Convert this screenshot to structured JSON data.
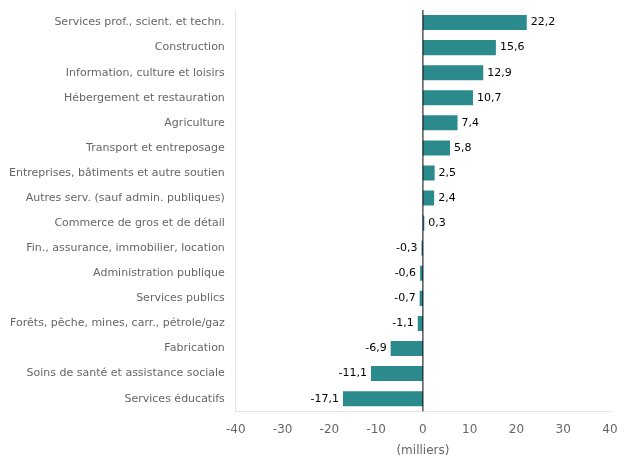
{
  "chart_data": {
    "type": "bar",
    "orientation": "horizontal",
    "categories": [
      "Services éducatifs",
      "Soins de santé et assistance sociale",
      "Fabrication",
      "Forêts, pêche, mines, carr., pétrole/gaz",
      "Services publics",
      "Administration publique",
      "Fin., assurance, immobilier, location",
      "Commerce de gros et de détail",
      "Autres serv. (sauf admin. publiques)",
      "Entreprises, bâtiments et autre soutien",
      "Transport et entreposage",
      "Agriculture",
      "Hébergement et restauration",
      "Information, culture et loisirs",
      "Construction",
      "Services prof., scient. et techn."
    ],
    "values": [
      -17.1,
      -11.1,
      -6.9,
      -1.1,
      -0.7,
      -0.6,
      -0.3,
      0.3,
      2.4,
      2.5,
      5.8,
      7.4,
      10.7,
      12.9,
      15.6,
      22.2
    ],
    "value_labels": [
      "-17,1",
      "-11,1",
      "-6,9",
      "-1,1",
      "-0,7",
      "-0,6",
      "-0,3",
      "0,3",
      "2,4",
      "2,5",
      "5,8",
      "7,4",
      "10,7",
      "12,9",
      "15,6",
      "22,2"
    ],
    "data_labels": true,
    "color": "#2a8a8c",
    "xlabel": "(milliers)",
    "xlim": [
      -40,
      40
    ],
    "xticks": [
      -40,
      -30,
      -20,
      -10,
      0,
      10,
      20,
      30,
      40
    ],
    "grid": false
  }
}
